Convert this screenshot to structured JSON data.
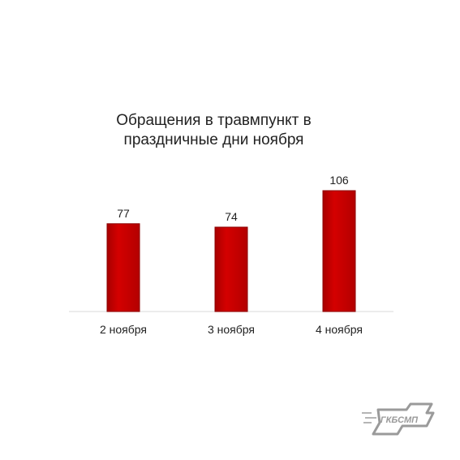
{
  "chart_data": {
    "type": "bar",
    "title": "Обращения в травмпункт в праздничные дни ноября",
    "categories": [
      "2 ноября",
      "3 ноября",
      "4 ноября"
    ],
    "values": [
      77,
      74,
      106
    ],
    "xlabel": "",
    "ylabel": "",
    "ylim": [
      0,
      106
    ],
    "grid": false,
    "legend": "none",
    "data_labels": true,
    "bar_color": "#cc0000",
    "bar_edge_color": "#8b0000"
  },
  "logo": {
    "text": "ГКБСМП",
    "color": "#9a9a9a"
  }
}
